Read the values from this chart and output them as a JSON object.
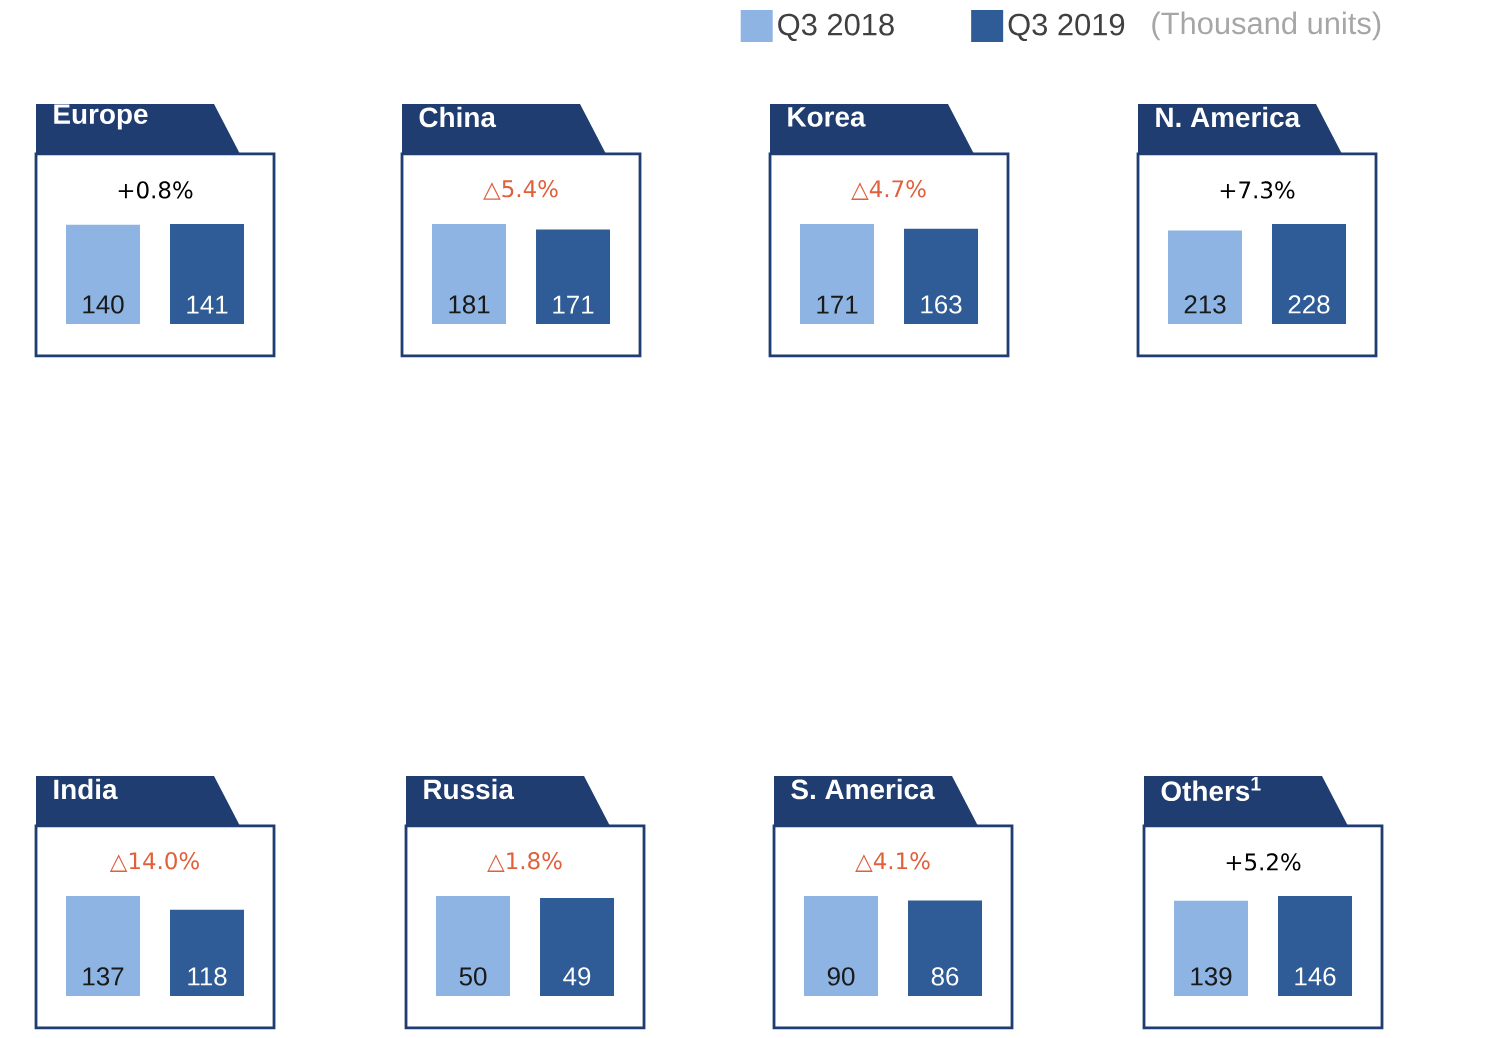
{
  "chart_data": [
    {
      "type": "bar",
      "title": "Europe",
      "subtitle": "+0.8%",
      "categories": [
        null
      ],
      "series": [
        {
          "color": "#8db4e2",
          "values": [
            140
          ]
        },
        {
          "color": "#2f5c96",
          "values": [
            141
          ]
        }
      ],
      "data_labels": true
    },
    {
      "type": "bar",
      "title": "China",
      "subtitle": "△5.4%",
      "categories": [
        null
      ],
      "series": [
        {
          "color": "#8db4e2",
          "values": [
            181
          ]
        },
        {
          "color": "#2f5c96",
          "values": [
            171
          ]
        }
      ],
      "data_labels": true
    },
    {
      "type": "bar",
      "title": "Korea",
      "subtitle": "△4.7%",
      "categories": [
        null
      ],
      "series": [
        {
          "color": "#8db4e2",
          "values": [
            171
          ]
        },
        {
          "color": "#2f5c96",
          "values": [
            163
          ]
        }
      ],
      "data_labels": true
    },
    {
      "type": "bar",
      "title": "N. America",
      "subtitle": "+7.3%",
      "categories": [
        null
      ],
      "series": [
        {
          "name": "Q3 2018",
          "color": "#8db4e2",
          "values": [
            213
          ]
        },
        {
          "name": "Q3 2019",
          "color": "#2f5c96",
          "values": [
            228
          ]
        }
      ],
      "data_labels": true,
      "legend": "top left",
      "annotations": [
        "(Thousand units)"
      ]
    },
    {
      "type": "bar",
      "title": "India",
      "subtitle": "△14.0%",
      "categories": [
        null
      ],
      "series": [
        {
          "color": "#8db4e2",
          "values": [
            137
          ]
        },
        {
          "color": "#2f5c96",
          "values": [
            118
          ]
        }
      ],
      "data_labels": true
    },
    {
      "type": "bar",
      "title": "Russia",
      "subtitle": "△1.8%",
      "categories": [
        null
      ],
      "series": [
        {
          "color": "#8db4e2",
          "values": [
            50
          ]
        },
        {
          "color": "#2f5c96",
          "values": [
            49
          ]
        }
      ],
      "data_labels": true
    },
    {
      "type": "bar",
      "title": "S. America",
      "subtitle": "△4.1%",
      "categories": [
        null
      ],
      "series": [
        {
          "color": "#8db4e2",
          "values": [
            90
          ]
        },
        {
          "color": "#2f5c96",
          "values": [
            86
          ]
        }
      ],
      "data_labels": true
    },
    {
      "type": "bar",
      "title": "Others$^{1}$",
      "subtitle": "+5.2%",
      "categories": [
        null
      ],
      "series": [
        {
          "color": "#8db4e2",
          "values": [
            139
          ]
        },
        {
          "color": "#2f5c96",
          "values": [
            146
          ]
        }
      ],
      "data_labels": true
    }
  ]
}
